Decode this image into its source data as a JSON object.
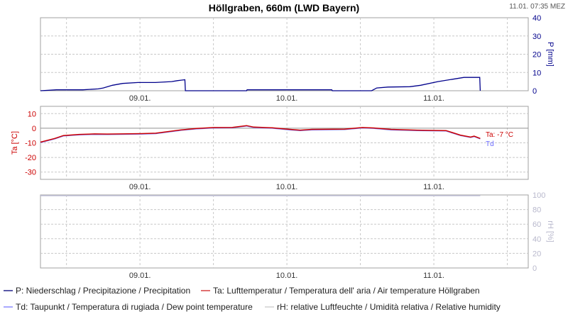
{
  "header": {
    "title": "Höllgraben, 660m (LWD Bayern)",
    "timestamp": "11.01. 07:35 MEZ"
  },
  "colors": {
    "precip": "#00008b",
    "temp": "#cc0000",
    "dew": "#6a6aff",
    "rh": "#c8c8d8",
    "grid": "#c8c8c8"
  },
  "chart_data": [
    {
      "type": "line",
      "id": "precip",
      "xlim": [
        "08.01. 07:45",
        "11.01. 15:25"
      ],
      "xticks": [
        "09.01.",
        "10.01.",
        "11.01."
      ],
      "ylabel": "P [mm]",
      "yaxis": "right",
      "ylim": [
        0,
        40
      ],
      "yticks": [
        0,
        10,
        20,
        30,
        40
      ],
      "grid": true,
      "series": [
        {
          "key": "P",
          "color": "#00008b",
          "points": [
            [
              "08.01. 07:45",
              0
            ],
            [
              "08.01. 10:20",
              0.5
            ],
            [
              "08.01. 14:40",
              0.5
            ],
            [
              "08.01. 17:10",
              1
            ],
            [
              "08.01. 18:00",
              1.5
            ],
            [
              "08.01. 19:30",
              3
            ],
            [
              "08.01. 21:10",
              4
            ],
            [
              "08.01. 23:40",
              4.5
            ],
            [
              "09.01. 02:30",
              4.5
            ],
            [
              "09.01. 05:10",
              5
            ],
            [
              "09.01. 06:05",
              5.5
            ],
            [
              "09.01. 07:20",
              6
            ],
            [
              "09.01. 07:25",
              0
            ],
            [
              "09.01. 17:25",
              0
            ],
            [
              "09.01. 17:30",
              0.5
            ],
            [
              "10.01. 07:20",
              0.5
            ],
            [
              "10.01. 07:25",
              0
            ],
            [
              "10.01. 13:50",
              0
            ],
            [
              "10.01. 14:40",
              1.5
            ],
            [
              "10.01. 16:30",
              2
            ],
            [
              "10.01. 20:05",
              2.2
            ],
            [
              "10.01. 21:50",
              3
            ],
            [
              "11.01. 00:40",
              5
            ],
            [
              "11.01. 03:25",
              6.5
            ],
            [
              "11.01. 04:55",
              7.3
            ],
            [
              "11.01. 07:30",
              7.3
            ],
            [
              "11.01. 07:35",
              0
            ]
          ]
        }
      ]
    },
    {
      "type": "line",
      "id": "temp",
      "xlim": [
        "08.01. 07:45",
        "11.01. 15:25"
      ],
      "xticks": [
        "09.01.",
        "10.01.",
        "11.01."
      ],
      "ylabel": "Ta [°C]",
      "yaxis": "left",
      "ylim": [
        -35,
        15
      ],
      "yticks": [
        -30,
        -20,
        -10,
        0,
        10
      ],
      "grid": true,
      "annotations": [
        {
          "text": "Ta: -7 °C",
          "color": "#cc0000"
        },
        {
          "text": "Td",
          "color": "#6a6aff"
        }
      ],
      "series": [
        {
          "key": "Td",
          "color": "#8080ff",
          "points": [
            [
              "08.01. 07:45",
              -9.8
            ],
            [
              "08.01. 10:05",
              -7.3
            ],
            [
              "08.01. 11:30",
              -5.3
            ],
            [
              "08.01. 14:05",
              -4.5
            ],
            [
              "08.01. 16:35",
              -4.2
            ],
            [
              "08.01. 18:40",
              -4.3
            ],
            [
              "09.01. 00:15",
              -4
            ],
            [
              "09.01. 02:35",
              -3.7
            ],
            [
              "09.01. 06:45",
              -1.4
            ],
            [
              "09.01. 09:10",
              -0.5
            ],
            [
              "09.01. 12:05",
              0.2
            ],
            [
              "09.01. 15:05",
              0.3
            ],
            [
              "09.01. 17:25",
              1.5
            ],
            [
              "09.01. 18:35",
              0.5
            ],
            [
              "09.01. 21:35",
              0
            ],
            [
              "10.01. 00:30",
              -1.1
            ],
            [
              "10.01. 02:10",
              -1.6
            ],
            [
              "10.01. 04:05",
              -1.1
            ],
            [
              "10.01. 09:25",
              -0.9
            ],
            [
              "10.01. 12:20",
              0.2
            ],
            [
              "10.01. 14:10",
              -0.1
            ],
            [
              "10.01. 17:00",
              -1.1
            ],
            [
              "10.01. 21:15",
              -1.6
            ],
            [
              "11.01. 02:00",
              -1.9
            ],
            [
              "11.01. 04:20",
              -5
            ],
            [
              "11.01. 06:00",
              -6.3
            ],
            [
              "11.01. 06:35",
              -5.7
            ],
            [
              "11.01. 07:35",
              -7.3
            ]
          ]
        },
        {
          "key": "Ta",
          "color": "#cc0000",
          "points": [
            [
              "08.01. 07:45",
              -9.5
            ],
            [
              "08.01. 10:05",
              -7
            ],
            [
              "08.01. 11:30",
              -5
            ],
            [
              "08.01. 14:05",
              -4.2
            ],
            [
              "08.01. 16:35",
              -3.9
            ],
            [
              "08.01. 18:40",
              -4
            ],
            [
              "09.01. 00:15",
              -3.7
            ],
            [
              "09.01. 02:35",
              -3.4
            ],
            [
              "09.01. 06:45",
              -1.1
            ],
            [
              "09.01. 09:10",
              -0.2
            ],
            [
              "09.01. 12:05",
              0.5
            ],
            [
              "09.01. 15:05",
              0.6
            ],
            [
              "09.01. 17:25",
              1.8
            ],
            [
              "09.01. 18:35",
              0.8
            ],
            [
              "09.01. 21:35",
              0.3
            ],
            [
              "10.01. 00:30",
              -0.8
            ],
            [
              "10.01. 02:10",
              -1.3
            ],
            [
              "10.01. 04:05",
              -0.8
            ],
            [
              "10.01. 09:25",
              -0.6
            ],
            [
              "10.01. 12:20",
              0.5
            ],
            [
              "10.01. 14:10",
              0.2
            ],
            [
              "10.01. 17:00",
              -0.8
            ],
            [
              "10.01. 21:15",
              -1.3
            ],
            [
              "11.01. 02:00",
              -1.6
            ],
            [
              "11.01. 04:20",
              -4.7
            ],
            [
              "11.01. 06:00",
              -6
            ],
            [
              "11.01. 06:35",
              -5.4
            ],
            [
              "11.01. 07:35",
              -7
            ]
          ]
        }
      ]
    },
    {
      "type": "line",
      "id": "rh",
      "xlim": [
        "08.01. 07:45",
        "11.01. 15:25"
      ],
      "xticks": [
        "09.01.",
        "10.01.",
        "11.01."
      ],
      "ylabel": "rH [%]",
      "yaxis": "right",
      "ylim": [
        0,
        100
      ],
      "yticks": [
        0,
        20,
        40,
        60,
        80,
        100
      ],
      "grid": true,
      "series": [
        {
          "key": "rH",
          "color": "#c0c0d8",
          "points": [
            [
              "08.01. 07:45",
              99
            ],
            [
              "11.01. 07:35",
              99
            ]
          ]
        }
      ]
    }
  ],
  "legend": [
    {
      "label": "P: Niederschlag / Precipitazione / Precipitation",
      "color": "#5a5aa8"
    },
    {
      "label": "Ta: Lufttemperatur / Temperatura dell' aria / Air temperature  Höllgraben",
      "color": "#e07070"
    },
    {
      "label": "Td: Taupunkt / Temperatura di rugiada / Dew point temperature",
      "color": "#a8a8ff"
    },
    {
      "label": "rH: relative Luftfeuchte / Umidità relativa / Relative humidity",
      "color": "#dcdcdc"
    }
  ]
}
